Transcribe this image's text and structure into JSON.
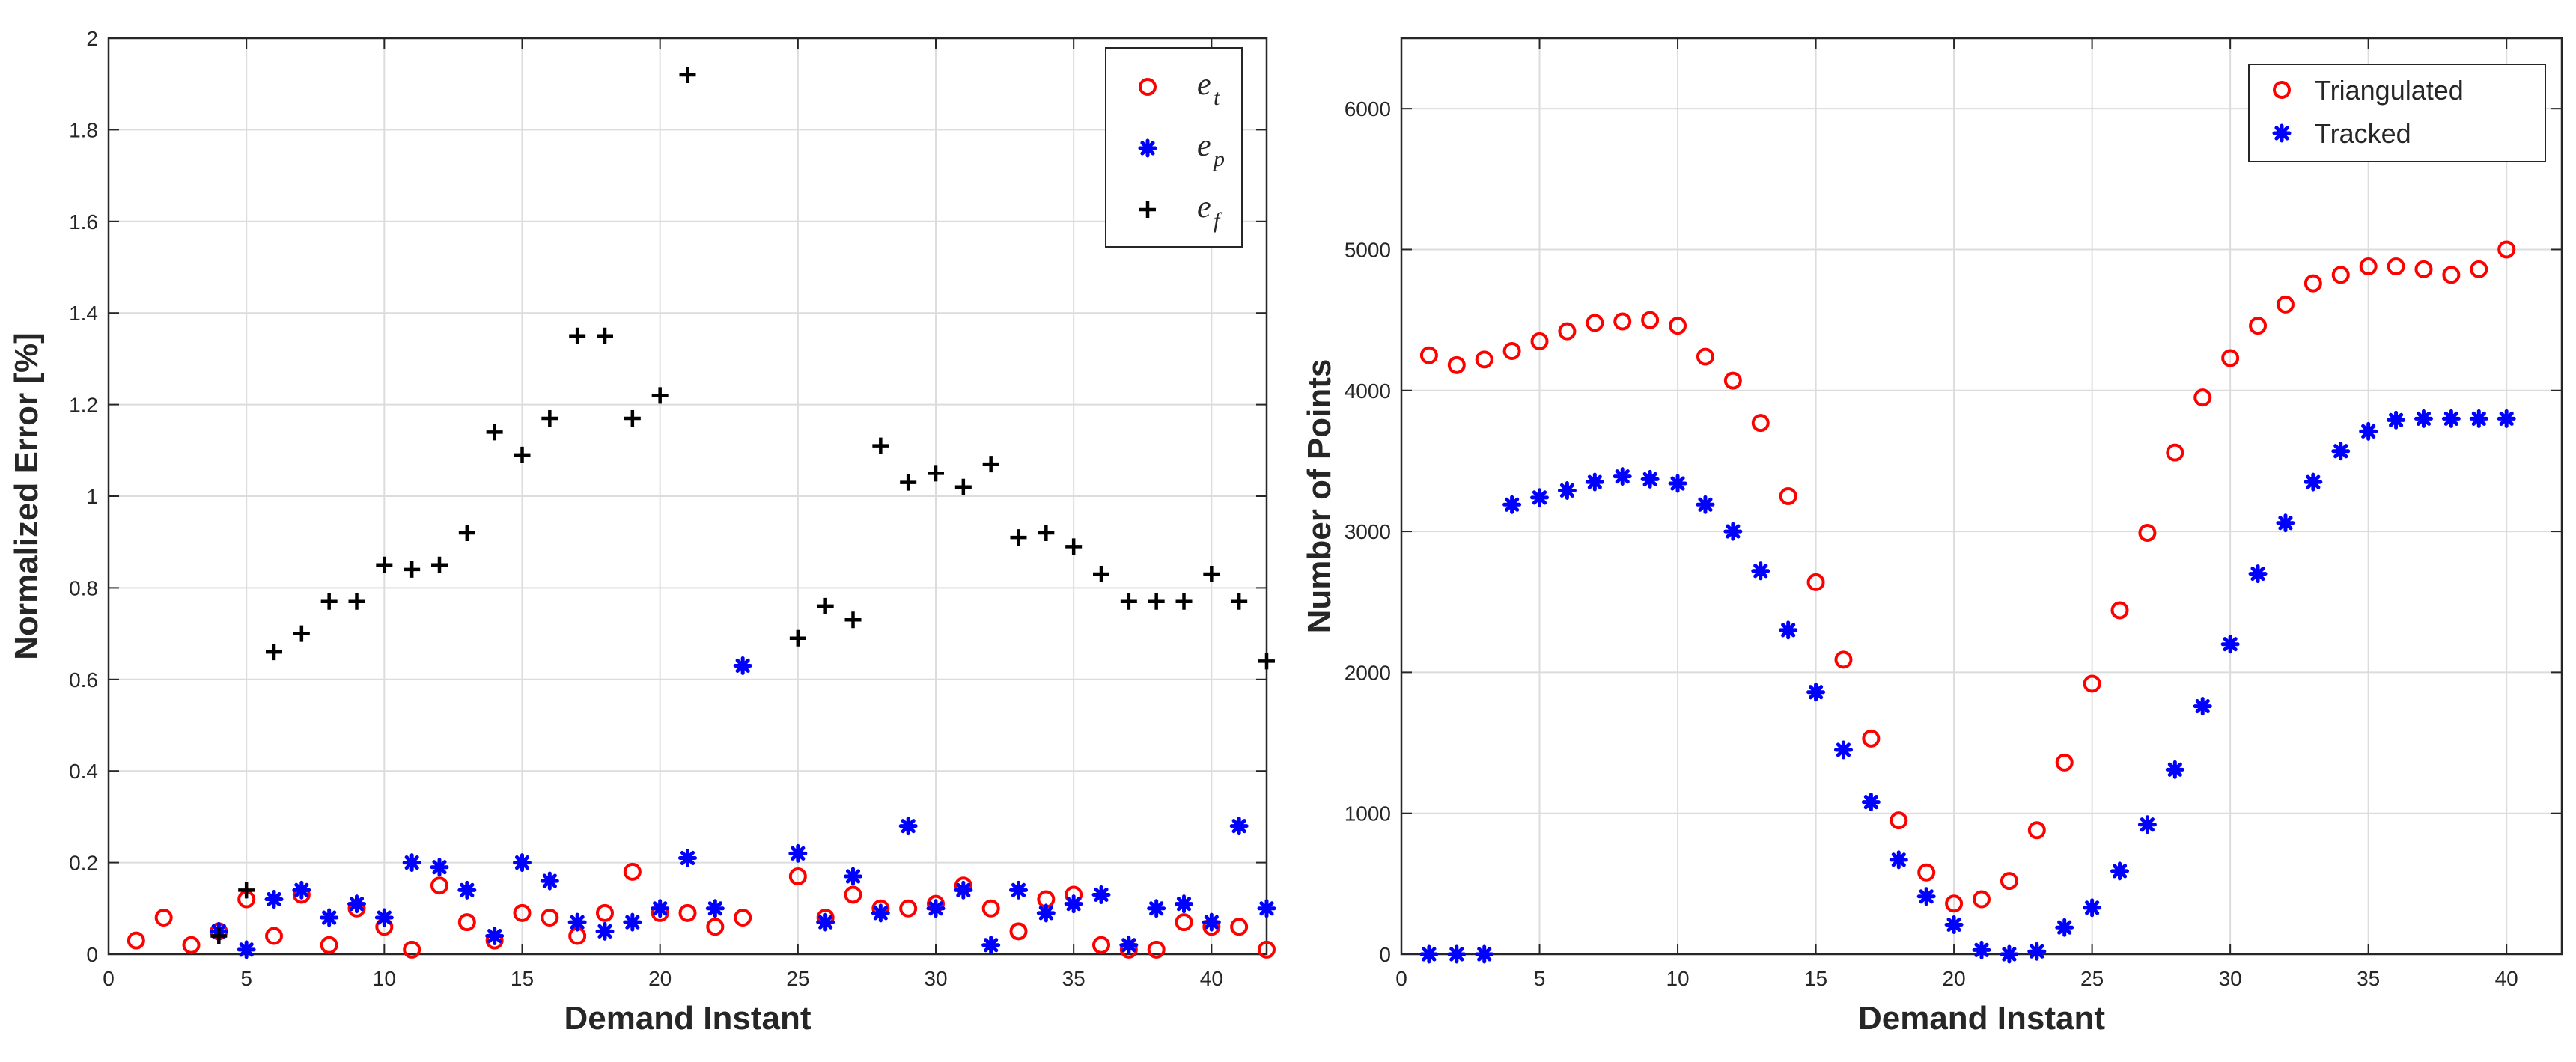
{
  "chart_data": [
    {
      "type": "scatter",
      "xlabel": "Demand Instant",
      "ylabel": "Normalized Error [%]",
      "xlim": [
        0,
        42
      ],
      "ylim": [
        0,
        2
      ],
      "xticks": [
        "0",
        "5",
        "10",
        "15",
        "20",
        "25",
        "30",
        "35",
        "40"
      ],
      "yticks": [
        "0",
        "0.2",
        "0.4",
        "0.6",
        "0.8",
        "1",
        "1.2",
        "1.4",
        "1.6",
        "1.8",
        "2"
      ],
      "grid": true,
      "legend_position": "top-right",
      "series": [
        {
          "name": "e",
          "sub": "t",
          "marker": "circle",
          "color": "#ff0000",
          "x": [
            1,
            2,
            3,
            4,
            5,
            6,
            7,
            8,
            9,
            10,
            11,
            12,
            13,
            14,
            15,
            16,
            17,
            18,
            19,
            20,
            21,
            22,
            23,
            25,
            26,
            27,
            28,
            29,
            30,
            31,
            32,
            33,
            34,
            35,
            36,
            37,
            38,
            39,
            40,
            41,
            42
          ],
          "y": [
            0.03,
            0.08,
            0.02,
            0.05,
            0.12,
            0.04,
            0.13,
            0.02,
            0.1,
            0.06,
            0.01,
            0.15,
            0.07,
            0.03,
            0.09,
            0.08,
            0.04,
            0.09,
            0.18,
            0.09,
            0.09,
            0.06,
            0.08,
            0.17,
            0.08,
            0.13,
            0.1,
            0.1,
            0.11,
            0.15,
            0.1,
            0.05,
            0.12,
            0.13,
            0.02,
            0.01,
            0.01,
            0.07,
            0.06,
            0.06,
            0.01
          ]
        },
        {
          "name": "e",
          "sub": "p",
          "marker": "asterisk",
          "color": "#0000ff",
          "x": [
            4,
            5,
            6,
            7,
            8,
            9,
            10,
            11,
            12,
            13,
            14,
            15,
            16,
            17,
            18,
            19,
            20,
            21,
            22,
            23,
            25,
            26,
            27,
            28,
            29,
            30,
            31,
            32,
            33,
            34,
            35,
            36,
            37,
            38,
            39,
            40,
            41,
            42
          ],
          "y": [
            0.05,
            0.01,
            0.12,
            0.14,
            0.08,
            0.11,
            0.08,
            0.2,
            0.19,
            0.14,
            0.04,
            0.2,
            0.16,
            0.07,
            0.05,
            0.07,
            0.1,
            0.21,
            0.1,
            0.63,
            0.22,
            0.07,
            0.17,
            0.09,
            0.28,
            0.1,
            0.14,
            0.02,
            0.14,
            0.09,
            0.11,
            0.13,
            0.02,
            0.1,
            0.11,
            0.07,
            0.28,
            0.1
          ]
        },
        {
          "name": "e",
          "sub": "f",
          "marker": "plus",
          "color": "#000000",
          "x": [
            4,
            5,
            6,
            7,
            8,
            9,
            10,
            11,
            12,
            13,
            14,
            15,
            16,
            17,
            18,
            19,
            20,
            21,
            25,
            26,
            27,
            28,
            29,
            30,
            31,
            32,
            33,
            34,
            35,
            36,
            37,
            38,
            39,
            40,
            41,
            42
          ],
          "y": [
            0.04,
            0.14,
            0.66,
            0.7,
            0.77,
            0.77,
            0.85,
            0.84,
            0.85,
            0.92,
            1.14,
            1.09,
            1.17,
            1.35,
            1.35,
            1.17,
            1.22,
            1.92,
            0.69,
            0.76,
            0.73,
            1.11,
            1.03,
            1.05,
            1.02,
            1.07,
            0.91,
            0.92,
            0.89,
            0.83,
            0.77,
            0.77,
            0.77,
            0.83,
            0.77,
            0.64
          ]
        }
      ]
    },
    {
      "type": "scatter",
      "xlabel": "Demand Instant",
      "ylabel": "Number of Points",
      "xlim": [
        0,
        42
      ],
      "ylim": [
        0,
        6500
      ],
      "xticks": [
        "0",
        "5",
        "10",
        "15",
        "20",
        "25",
        "30",
        "35",
        "40"
      ],
      "yticks": [
        "0",
        "1000",
        "2000",
        "3000",
        "4000",
        "5000",
        "6000"
      ],
      "grid": true,
      "legend_position": "top-right",
      "series": [
        {
          "name": "Triangulated",
          "marker": "circle",
          "color": "#ff0000",
          "x": [
            1,
            2,
            3,
            4,
            5,
            6,
            7,
            8,
            9,
            10,
            11,
            12,
            13,
            14,
            15,
            16,
            17,
            18,
            19,
            20,
            21,
            22,
            23,
            24,
            25,
            26,
            27,
            28,
            29,
            30,
            31,
            32,
            33,
            34,
            35,
            36,
            37,
            38,
            39,
            40
          ],
          "y": [
            4250,
            4180,
            4220,
            4280,
            4350,
            4420,
            4480,
            4490,
            4500,
            4460,
            4240,
            4070,
            3770,
            3250,
            2640,
            2090,
            1530,
            950,
            580,
            360,
            390,
            520,
            880,
            1360,
            1920,
            2440,
            2990,
            3560,
            3950,
            4230,
            4460,
            4610,
            4760,
            4820,
            4880,
            4880,
            4860,
            4820,
            4860,
            5000
          ]
        },
        {
          "name": "Tracked",
          "marker": "asterisk",
          "color": "#0000ff",
          "x": [
            1,
            2,
            3,
            4,
            5,
            6,
            7,
            8,
            9,
            10,
            11,
            12,
            13,
            14,
            15,
            16,
            17,
            18,
            19,
            20,
            21,
            22,
            23,
            24,
            25,
            26,
            27,
            28,
            29,
            30,
            31,
            32,
            33,
            34,
            35,
            36,
            37,
            38,
            39,
            40
          ],
          "y": [
            0,
            0,
            0,
            3190,
            3240,
            3290,
            3350,
            3390,
            3370,
            3340,
            3190,
            3000,
            2720,
            2300,
            1860,
            1450,
            1080,
            670,
            410,
            210,
            30,
            0,
            20,
            190,
            330,
            590,
            920,
            1310,
            1760,
            2200,
            2700,
            3060,
            3350,
            3570,
            3710,
            3790,
            3800,
            3800,
            3800,
            3800
          ]
        }
      ]
    }
  ]
}
